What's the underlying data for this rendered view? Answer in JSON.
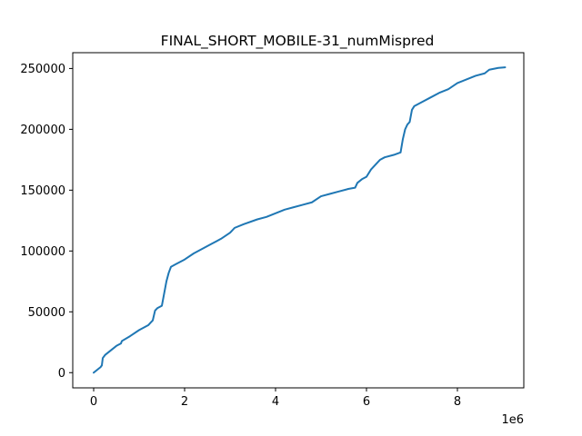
{
  "chart_data": {
    "type": "line",
    "title": "FINAL_SHORT_MOBILE-31_numMispred",
    "xlabel": "",
    "ylabel": "",
    "x_offset_label": "1e6",
    "x_scale": 1000000,
    "xlim": [
      -0.46,
      9.46
    ],
    "ylim": [
      -12500,
      263000
    ],
    "x_ticks": [
      0,
      2,
      4,
      6,
      8
    ],
    "x_tick_labels": [
      "0",
      "2",
      "4",
      "6",
      "8"
    ],
    "y_ticks": [
      0,
      50000,
      100000,
      150000,
      200000,
      250000
    ],
    "y_tick_labels": [
      "0",
      "50000",
      "100000",
      "150000",
      "200000",
      "250000"
    ],
    "grid": false,
    "legend": "none",
    "series": [
      {
        "color": "#1f77b4",
        "points": [
          [
            0.0,
            0
          ],
          [
            0.05,
            1500
          ],
          [
            0.1,
            3000
          ],
          [
            0.15,
            4500
          ],
          [
            0.18,
            6000
          ],
          [
            0.2,
            12000
          ],
          [
            0.25,
            14500
          ],
          [
            0.3,
            16000
          ],
          [
            0.4,
            19000
          ],
          [
            0.5,
            22000
          ],
          [
            0.6,
            24000
          ],
          [
            0.62,
            26000
          ],
          [
            0.8,
            30000
          ],
          [
            1.0,
            35000
          ],
          [
            1.2,
            39000
          ],
          [
            1.25,
            41000
          ],
          [
            1.3,
            43000
          ],
          [
            1.35,
            51000
          ],
          [
            1.4,
            53000
          ],
          [
            1.5,
            55000
          ],
          [
            1.55,
            65000
          ],
          [
            1.6,
            75000
          ],
          [
            1.65,
            82000
          ],
          [
            1.7,
            87000
          ],
          [
            1.8,
            89000
          ],
          [
            2.0,
            93000
          ],
          [
            2.2,
            98000
          ],
          [
            2.4,
            102000
          ],
          [
            2.6,
            106000
          ],
          [
            2.7,
            108000
          ],
          [
            2.8,
            110000
          ],
          [
            3.0,
            115000
          ],
          [
            3.1,
            119000
          ],
          [
            3.3,
            122000
          ],
          [
            3.6,
            126000
          ],
          [
            3.8,
            128000
          ],
          [
            4.0,
            131000
          ],
          [
            4.2,
            134000
          ],
          [
            4.4,
            136000
          ],
          [
            4.6,
            138000
          ],
          [
            4.8,
            140000
          ],
          [
            5.0,
            145000
          ],
          [
            5.2,
            147000
          ],
          [
            5.4,
            149000
          ],
          [
            5.6,
            151000
          ],
          [
            5.75,
            152000
          ],
          [
            5.8,
            156000
          ],
          [
            5.9,
            159000
          ],
          [
            6.0,
            161000
          ],
          [
            6.1,
            167000
          ],
          [
            6.2,
            171000
          ],
          [
            6.3,
            175000
          ],
          [
            6.4,
            177000
          ],
          [
            6.6,
            179000
          ],
          [
            6.75,
            181000
          ],
          [
            6.8,
            192000
          ],
          [
            6.85,
            200000
          ],
          [
            6.9,
            204000
          ],
          [
            6.95,
            206000
          ],
          [
            7.0,
            216000
          ],
          [
            7.05,
            219000
          ],
          [
            7.2,
            222000
          ],
          [
            7.4,
            226000
          ],
          [
            7.6,
            230000
          ],
          [
            7.8,
            233000
          ],
          [
            8.0,
            238000
          ],
          [
            8.2,
            241000
          ],
          [
            8.4,
            244000
          ],
          [
            8.6,
            246000
          ],
          [
            8.7,
            249000
          ],
          [
            8.9,
            250500
          ],
          [
            9.05,
            251000
          ]
        ]
      }
    ]
  }
}
